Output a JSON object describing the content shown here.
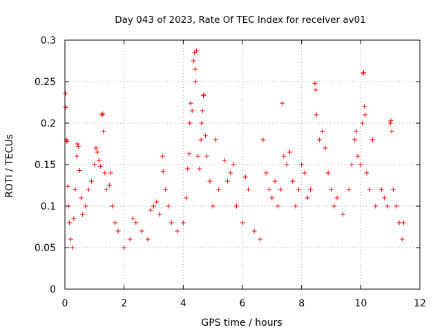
{
  "chart_data": {
    "type": "scatter",
    "title": "Day 043 of 2023, Rate Of TEC Index for receiver av01",
    "xlabel": "GPS time / hours",
    "ylabel": "ROTI / TECUs",
    "xlim": [
      0,
      12
    ],
    "ylim": [
      0,
      0.3
    ],
    "xticks": [
      "0",
      "2",
      "4",
      "6",
      "8",
      "10",
      "12"
    ],
    "yticks": [
      "0",
      "0.05",
      "0.1",
      "0.15",
      "0.2",
      "0.25",
      "0.3"
    ],
    "grid": true,
    "marker": "+",
    "color": "#ff0000",
    "points": [
      [
        0.02,
        0.236
      ],
      [
        0.03,
        0.219
      ],
      [
        0.05,
        0.18
      ],
      [
        0.07,
        0.178
      ],
      [
        0.1,
        0.124
      ],
      [
        0.12,
        0.1
      ],
      [
        0.15,
        0.08
      ],
      [
        0.2,
        0.06
      ],
      [
        0.25,
        0.05
      ],
      [
        0.3,
        0.085
      ],
      [
        0.35,
        0.12
      ],
      [
        0.4,
        0.16
      ],
      [
        0.42,
        0.175
      ],
      [
        0.45,
        0.172
      ],
      [
        0.5,
        0.143
      ],
      [
        0.55,
        0.11
      ],
      [
        0.6,
        0.09
      ],
      [
        0.7,
        0.1
      ],
      [
        0.8,
        0.12
      ],
      [
        0.9,
        0.13
      ],
      [
        1.0,
        0.15
      ],
      [
        1.05,
        0.17
      ],
      [
        1.1,
        0.165
      ],
      [
        1.15,
        0.155
      ],
      [
        1.2,
        0.148
      ],
      [
        1.25,
        0.21
      ],
      [
        1.28,
        0.211
      ],
      [
        1.3,
        0.19
      ],
      [
        1.35,
        0.14
      ],
      [
        1.4,
        0.12
      ],
      [
        1.5,
        0.125
      ],
      [
        1.55,
        0.14
      ],
      [
        1.6,
        0.1
      ],
      [
        1.7,
        0.08
      ],
      [
        1.8,
        0.07
      ],
      [
        2.0,
        0.05
      ],
      [
        2.2,
        0.06
      ],
      [
        2.3,
        0.085
      ],
      [
        2.4,
        0.08
      ],
      [
        2.6,
        0.07
      ],
      [
        2.8,
        0.06
      ],
      [
        2.9,
        0.095
      ],
      [
        3.0,
        0.1
      ],
      [
        3.1,
        0.105
      ],
      [
        3.2,
        0.09
      ],
      [
        3.3,
        0.16
      ],
      [
        3.32,
        0.142
      ],
      [
        3.4,
        0.12
      ],
      [
        3.5,
        0.1
      ],
      [
        3.6,
        0.08
      ],
      [
        3.8,
        0.07
      ],
      [
        4.0,
        0.08
      ],
      [
        4.1,
        0.11
      ],
      [
        4.15,
        0.145
      ],
      [
        4.2,
        0.163
      ],
      [
        4.22,
        0.2
      ],
      [
        4.25,
        0.224
      ],
      [
        4.3,
        0.215
      ],
      [
        4.35,
        0.275
      ],
      [
        4.38,
        0.285
      ],
      [
        4.4,
        0.265
      ],
      [
        4.42,
        0.25
      ],
      [
        4.45,
        0.287
      ],
      [
        4.5,
        0.16
      ],
      [
        4.55,
        0.145
      ],
      [
        4.6,
        0.18
      ],
      [
        4.62,
        0.2
      ],
      [
        4.65,
        0.215
      ],
      [
        4.68,
        0.233
      ],
      [
        4.7,
        0.234
      ],
      [
        4.75,
        0.185
      ],
      [
        4.8,
        0.16
      ],
      [
        4.9,
        0.13
      ],
      [
        5.0,
        0.1
      ],
      [
        5.1,
        0.18
      ],
      [
        5.2,
        0.12
      ],
      [
        5.4,
        0.155
      ],
      [
        5.5,
        0.13
      ],
      [
        5.6,
        0.14
      ],
      [
        5.7,
        0.15
      ],
      [
        5.8,
        0.1
      ],
      [
        6.0,
        0.08
      ],
      [
        6.1,
        0.135
      ],
      [
        6.2,
        0.12
      ],
      [
        6.4,
        0.07
      ],
      [
        6.6,
        0.06
      ],
      [
        6.7,
        0.18
      ],
      [
        6.8,
        0.14
      ],
      [
        6.9,
        0.12
      ],
      [
        7.0,
        0.11
      ],
      [
        7.1,
        0.13
      ],
      [
        7.2,
        0.1
      ],
      [
        7.3,
        0.12
      ],
      [
        7.35,
        0.224
      ],
      [
        7.4,
        0.16
      ],
      [
        7.5,
        0.15
      ],
      [
        7.6,
        0.165
      ],
      [
        7.7,
        0.13
      ],
      [
        7.8,
        0.1
      ],
      [
        7.9,
        0.12
      ],
      [
        8.0,
        0.15
      ],
      [
        8.1,
        0.14
      ],
      [
        8.2,
        0.11
      ],
      [
        8.3,
        0.12
      ],
      [
        8.45,
        0.248
      ],
      [
        8.48,
        0.24
      ],
      [
        8.5,
        0.21
      ],
      [
        8.6,
        0.18
      ],
      [
        8.7,
        0.19
      ],
      [
        8.8,
        0.17
      ],
      [
        8.9,
        0.14
      ],
      [
        9.0,
        0.12
      ],
      [
        9.1,
        0.1
      ],
      [
        9.2,
        0.11
      ],
      [
        9.4,
        0.09
      ],
      [
        9.6,
        0.12
      ],
      [
        9.7,
        0.15
      ],
      [
        9.8,
        0.18
      ],
      [
        9.85,
        0.19
      ],
      [
        9.9,
        0.16
      ],
      [
        10.0,
        0.15
      ],
      [
        10.05,
        0.2
      ],
      [
        10.08,
        0.26
      ],
      [
        10.1,
        0.261
      ],
      [
        10.12,
        0.22
      ],
      [
        10.15,
        0.21
      ],
      [
        10.2,
        0.14
      ],
      [
        10.3,
        0.12
      ],
      [
        10.4,
        0.18
      ],
      [
        10.5,
        0.1
      ],
      [
        10.7,
        0.12
      ],
      [
        10.8,
        0.11
      ],
      [
        10.9,
        0.1
      ],
      [
        11.0,
        0.2
      ],
      [
        11.02,
        0.203
      ],
      [
        11.05,
        0.19
      ],
      [
        11.1,
        0.12
      ],
      [
        11.2,
        0.1
      ],
      [
        11.3,
        0.08
      ],
      [
        11.4,
        0.06
      ],
      [
        11.45,
        0.08
      ]
    ]
  }
}
